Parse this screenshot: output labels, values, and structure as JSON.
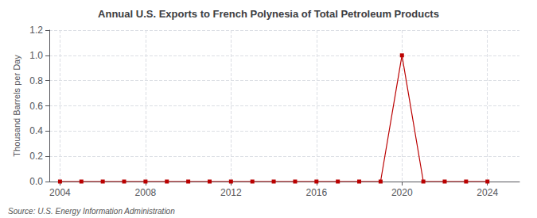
{
  "chart_data": {
    "type": "line",
    "title": "Annual U.S. Exports to French Polynesia of Total Petroleum Products",
    "ylabel": "Thousand Barrels per Day",
    "annotations": [
      "Source: U.S. Energy Information Administration"
    ],
    "x": [
      2004,
      2005,
      2006,
      2007,
      2008,
      2009,
      2010,
      2011,
      2012,
      2013,
      2014,
      2015,
      2016,
      2017,
      2018,
      2019,
      2020,
      2021,
      2022,
      2023,
      2024
    ],
    "values": [
      0.0,
      0.0,
      0.0,
      0.0,
      0.0,
      0.0,
      0.0,
      0.0,
      0.0,
      0.0,
      0.0,
      0.0,
      0.0,
      0.0,
      0.0,
      0.0,
      1.0,
      0.0,
      0.0,
      0.0,
      0.0
    ],
    "color": "#bb0000",
    "marker": "square",
    "xlim": [
      2003.5,
      2025.5
    ],
    "xticks": [
      2004,
      2008,
      2012,
      2016,
      2020,
      2024
    ],
    "ylim": [
      0.0,
      1.2
    ],
    "yticks": [
      {
        "value": 0.0,
        "label": "0.0"
      },
      0.2,
      0.4,
      0.6,
      0.8,
      {
        "value": 1.0,
        "label": "1.0"
      },
      1.2
    ],
    "grid": true
  }
}
